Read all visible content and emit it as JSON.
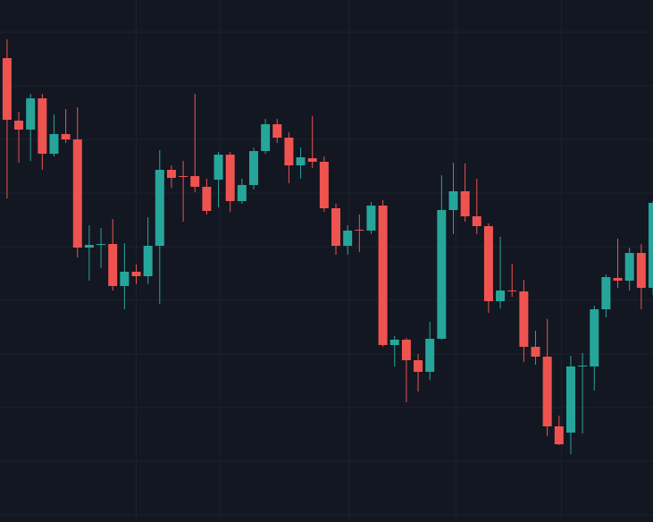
{
  "chart_data": {
    "type": "candlestick",
    "categories": [
      null,
      null,
      null,
      null,
      null,
      null,
      null,
      null,
      null,
      null,
      null,
      null,
      null,
      null,
      null,
      null,
      null,
      null,
      null,
      null,
      null,
      null,
      null,
      null,
      null,
      null,
      null,
      null,
      null,
      null,
      null,
      null,
      null,
      null,
      null,
      null,
      null,
      null,
      null,
      null,
      null,
      null,
      null,
      null,
      null,
      null,
      null,
      null,
      null,
      null,
      null,
      null,
      null,
      null,
      null,
      null
    ],
    "open": [
      519,
      449,
      439,
      474,
      412,
      434,
      428,
      307,
      310,
      311,
      264,
      280,
      275,
      309,
      394,
      387,
      387,
      375,
      383,
      411,
      359,
      377,
      415,
      445,
      430,
      399,
      407,
      403,
      351,
      309,
      327,
      326,
      354,
      198,
      204,
      181,
      168,
      205,
      349,
      370,
      342,
      331,
      247,
      259,
      258,
      196,
      185,
      107,
      100,
      174,
      174,
      238,
      273,
      270,
      301,
      262
    ],
    "high": [
      540,
      459,
      479,
      479,
      456,
      462,
      464,
      332,
      329,
      339,
      312,
      288,
      341,
      416,
      399,
      404,
      479,
      384,
      414,
      414,
      384,
      419,
      451,
      451,
      436,
      419,
      454,
      409,
      356,
      332,
      344,
      358,
      360,
      208,
      206,
      188,
      224,
      388,
      402,
      401,
      384,
      334,
      319,
      289,
      271,
      214,
      227,
      119,
      186,
      189,
      242,
      277,
      317,
      307,
      311,
      359
    ],
    "low": [
      362,
      402,
      404,
      394,
      409,
      424,
      296,
      270,
      284,
      259,
      238,
      266,
      266,
      244,
      374,
      336,
      369,
      344,
      352,
      347,
      356,
      372,
      412,
      424,
      379,
      384,
      396,
      347,
      299,
      299,
      302,
      322,
      196,
      174,
      134,
      146,
      159,
      204,
      322,
      336,
      322,
      234,
      239,
      252,
      179,
      176,
      96,
      86,
      76,
      99,
      147,
      229,
      262,
      259,
      238,
      254
    ],
    "close": [
      450,
      439,
      474,
      412,
      434,
      428,
      307,
      310,
      311,
      264,
      280,
      275,
      309,
      394,
      385,
      386,
      375,
      348,
      411,
      359,
      377,
      415,
      445,
      430,
      399,
      408,
      403,
      351,
      309,
      326,
      326,
      354,
      198,
      204,
      181,
      168,
      205,
      349,
      370,
      342,
      331,
      247,
      259,
      258,
      196,
      185,
      107,
      87,
      174,
      175,
      238,
      274,
      270,
      301,
      262,
      357
    ],
    "up_color": "#26a69a",
    "down_color": "#ef5350",
    "xlim": [
      -0.6,
      55
    ],
    "ylim": [
      0,
      584
    ],
    "grid": true,
    "grid_x": [
      11,
      18.1,
      29.1,
      38.2,
      47.2
    ],
    "grid_y": [
      548,
      488,
      428,
      368,
      308,
      248,
      188,
      128,
      68,
      8
    ]
  }
}
